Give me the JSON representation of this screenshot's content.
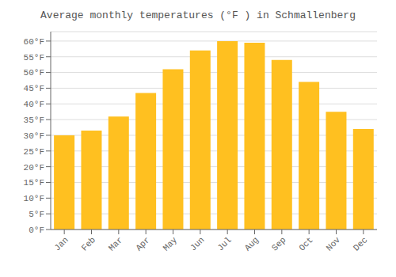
{
  "chart_data": {
    "type": "bar",
    "title": "Average monthly temperatures (°F ) in Schmallenberg",
    "categories": [
      "Jan",
      "Feb",
      "Mar",
      "Apr",
      "May",
      "Jun",
      "Jul",
      "Aug",
      "Sep",
      "Oct",
      "Nov",
      "Dec"
    ],
    "values": [
      30,
      31.5,
      36,
      43.5,
      51,
      57,
      60,
      59.5,
      54,
      47,
      37.5,
      32
    ],
    "color": "#FFC020",
    "ylim": [
      0,
      63
    ],
    "yticks": [
      {
        "value": 0,
        "label": "0°F"
      },
      {
        "value": 5,
        "label": "5°F"
      },
      {
        "value": 10,
        "label": "10°F"
      },
      {
        "value": 15,
        "label": "15°F"
      },
      {
        "value": 20,
        "label": "20°F"
      },
      {
        "value": 25,
        "label": "25°F"
      },
      {
        "value": 30,
        "label": "30°F"
      },
      {
        "value": 35,
        "label": "35°F"
      },
      {
        "value": 40,
        "label": "40°F"
      },
      {
        "value": 45,
        "label": "45°F"
      },
      {
        "value": 50,
        "label": "50°F"
      },
      {
        "value": 55,
        "label": "55°F"
      },
      {
        "value": 60,
        "label": "60°F"
      }
    ],
    "grid": true
  }
}
